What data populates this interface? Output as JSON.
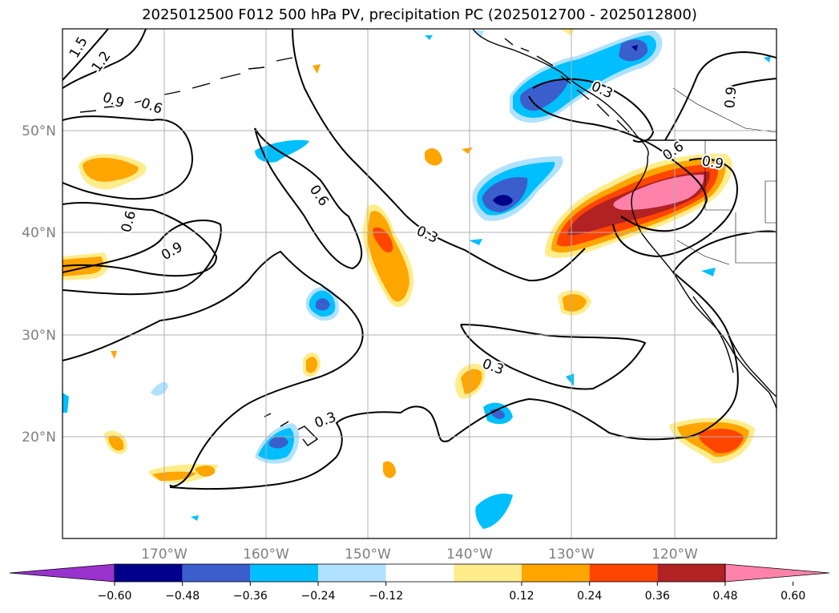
{
  "title": "2025012500 F012 500 hPa PV, precipitation PC (2025012700 - 2025012800)",
  "lat_labels": [
    "50°N",
    "40°N",
    "30°N",
    "20°N"
  ],
  "lon_labels": [
    "170°W",
    "160°W",
    "150°W",
    "140°W",
    "130°W",
    "120°W"
  ],
  "colorbar": {
    "tick_labels": [
      "−0.60",
      "−0.48",
      "−0.36",
      "−0.24",
      "−0.12",
      "0.12",
      "0.24",
      "0.36",
      "0.48",
      "0.60"
    ],
    "colors": [
      "#9932cc",
      "#00008b",
      "#3a5fcd",
      "#00bfff",
      "#b0e2ff",
      "#ffffff",
      "#ffec8b",
      "#ffa500",
      "#ff4500",
      "#b22222",
      "#ff82ab"
    ]
  },
  "contour_labels": [
    "1.5",
    "1.2",
    "0.9",
    "0.6",
    "0.6",
    "0.6",
    "0.9",
    "0.3",
    "0.3",
    "0.3",
    "0.3",
    "0.6",
    "0.9",
    "0.9"
  ]
}
